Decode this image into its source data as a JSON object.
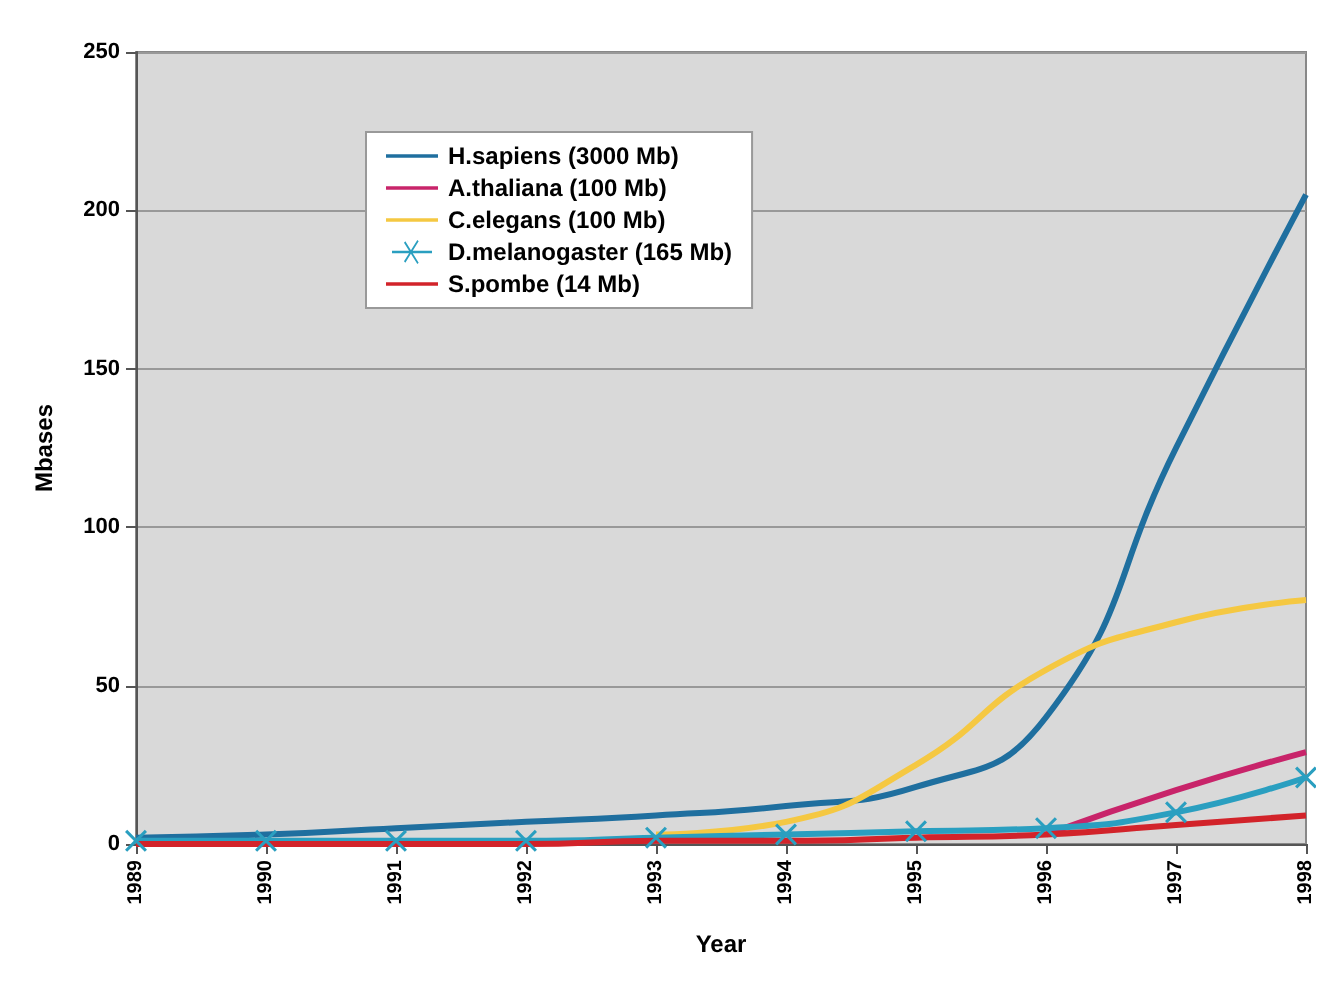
{
  "chart_data": {
    "type": "line",
    "xlabel": "Year",
    "ylabel": "Mbases",
    "categories": [
      "1989",
      "1990",
      "1991",
      "1992",
      "1993",
      "1994",
      "1995",
      "1996",
      "1997",
      "1998"
    ],
    "series": [
      {
        "name": "H.sapiens (3000 Mb)",
        "color": "#1f6f9f",
        "marker": "none",
        "values": [
          2,
          3,
          5,
          7,
          9,
          12,
          18,
          40,
          125,
          205
        ]
      },
      {
        "name": "A.thaliana (100 Mb)",
        "color": "#c8246a",
        "marker": "none",
        "values": [
          null,
          null,
          null,
          null,
          null,
          null,
          null,
          3,
          17,
          29
        ]
      },
      {
        "name": "C.elegans (100 Mb)",
        "color": "#f5c842",
        "marker": "none",
        "values": [
          null,
          null,
          null,
          null,
          3,
          7,
          25,
          55,
          70,
          77
        ]
      },
      {
        "name": "D.melanogaster (165 Mb)",
        "color": "#2a9fc0",
        "marker": "cross",
        "values": [
          1,
          1,
          1,
          1,
          2,
          3,
          4,
          5,
          10,
          21
        ]
      },
      {
        "name": "S.pombe (14 Mb)",
        "color": "#d2232a",
        "marker": "none",
        "values": [
          0,
          0,
          0,
          0,
          1,
          1,
          2,
          3,
          6,
          9
        ]
      }
    ],
    "ylim": [
      0,
      250
    ],
    "yticks": [
      0,
      50,
      100,
      150,
      200,
      250
    ],
    "grid": "y",
    "legend": "top left"
  }
}
